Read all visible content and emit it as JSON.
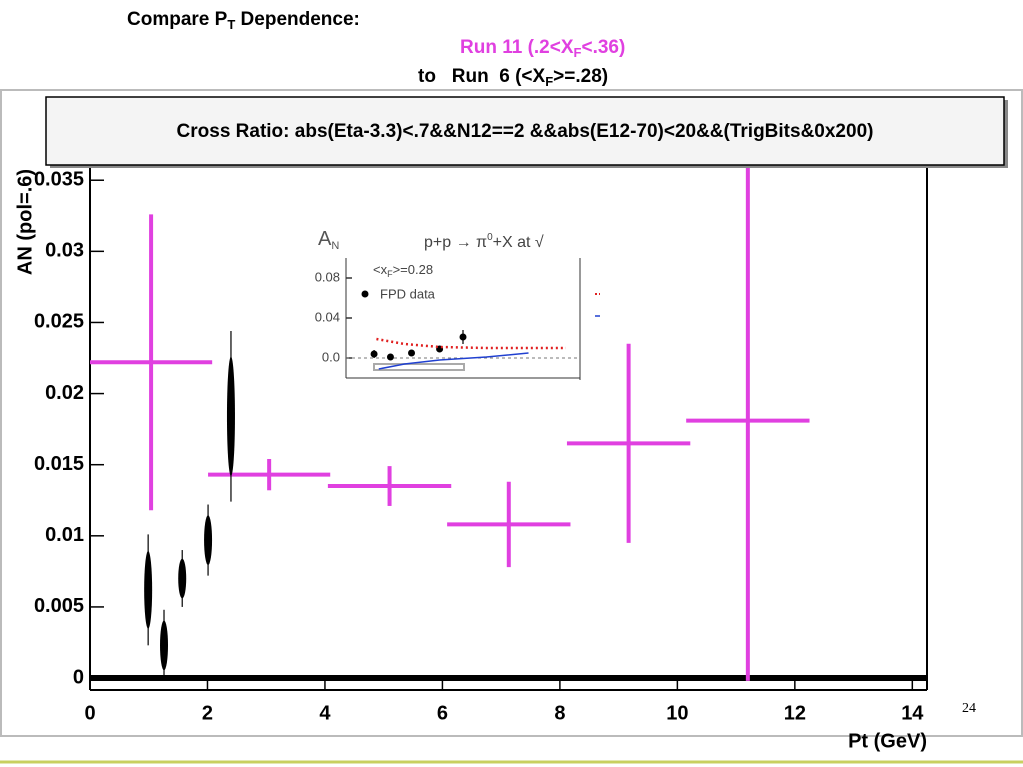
{
  "slide": {
    "title_parts": [
      "Compare P",
      "T",
      " Dependence:"
    ],
    "run11_parts": [
      "Run 11 (.2<X",
      "F",
      "<.36)"
    ],
    "run6_parts": [
      "to   Run  6 (<X",
      "F",
      ">=.28)"
    ],
    "page_number": "24"
  },
  "chart_data": [
    {
      "type": "scatter",
      "title": "Cross Ratio: abs(Eta-3.3)<.7&&N12==2 &&abs(E12-70)<20&&(TrigBits&0x200)",
      "x_label": "Pt (GeV)",
      "y_label": "AN (pol=.6)",
      "xlim": [
        0,
        14.25
      ],
      "ylim": [
        -0.00084,
        0.036
      ],
      "xticks": [
        0,
        2,
        4,
        6,
        8,
        10,
        12,
        14
      ],
      "yticks": [
        0,
        0.005,
        0.01,
        0.015,
        0.02,
        0.025,
        0.03,
        0.035
      ],
      "series": [
        {
          "color": "#e040e0",
          "marker": "cross",
          "x": [
            1.04,
            3.05,
            5.1,
            7.13,
            9.17,
            11.2
          ],
          "xerr": [
            1.04,
            1.04,
            1.05,
            1.05,
            1.05,
            1.05
          ],
          "values": [
            0.0222,
            0.0143,
            0.0135,
            0.0108,
            0.0165,
            0.0181
          ],
          "yerr": [
            0.0104,
            0.0011,
            0.0014,
            0.003,
            0.007,
            0.0183
          ]
        },
        {
          "color": "#000000",
          "marker": "blob",
          "x": [
            0.99,
            1.26,
            1.57,
            2.01,
            2.4
          ],
          "values": [
            0.0062,
            0.0023,
            0.007,
            0.0097,
            0.0184
          ],
          "yerr": [
            0.0039,
            0.0025,
            0.002,
            0.0025,
            0.006
          ]
        }
      ]
    },
    {
      "type": "scatter",
      "title_parts": [
        "A",
        "N"
      ],
      "subtitle_parts": [
        "p+p → π",
        "0",
        "+X at √"
      ],
      "annotation_parts": [
        "<x",
        "F",
        ">=0.28"
      ],
      "xlim": [
        0,
        1
      ],
      "ylim": [
        -0.02,
        0.1
      ],
      "yticks": [
        {
          "value": 0,
          "label": "0.0"
        },
        0.04,
        0.08
      ],
      "series": [
        {
          "name": "FPD data",
          "color": "#000000",
          "marker": "dot",
          "x": [
            0.12,
            0.19,
            0.28,
            0.4,
            0.5
          ],
          "values": [
            0.004,
            0.001,
            0.005,
            0.009,
            0.021
          ],
          "yerr": [
            0.004,
            0.002,
            0.002,
            0.002,
            0.007
          ]
        },
        {
          "color": "#e02020",
          "marker": "line",
          "style": "dotted",
          "x": [
            0.13,
            0.25,
            0.4,
            0.6,
            0.94
          ],
          "values": [
            0.019,
            0.014,
            0.011,
            0.01,
            0.01
          ]
        },
        {
          "color": "#2040d0",
          "marker": "line",
          "style": "solid",
          "x": [
            0.14,
            0.25,
            0.4,
            0.6,
            0.78
          ],
          "values": [
            -0.011,
            -0.006,
            -0.002,
            0.001,
            0.005
          ]
        }
      ]
    }
  ]
}
